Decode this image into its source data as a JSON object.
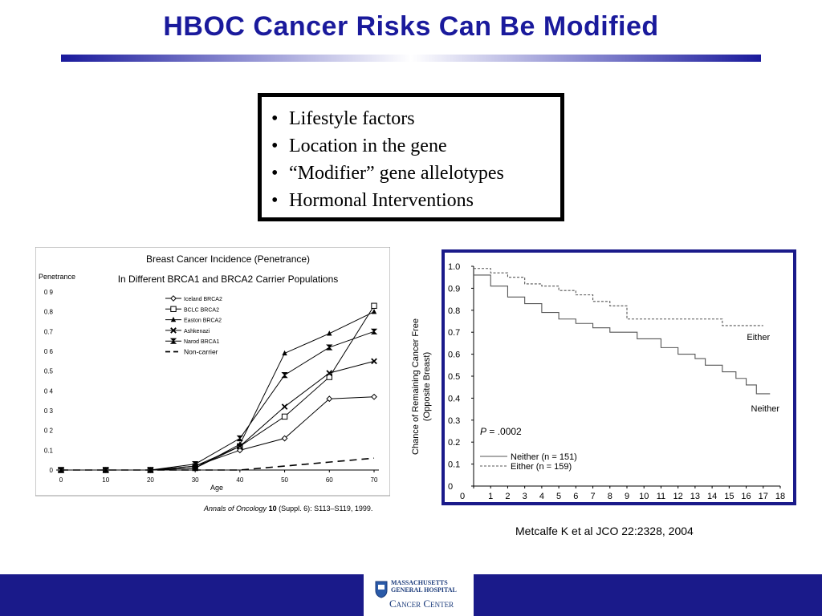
{
  "slide": {
    "title": "HBOC Cancer Risks Can Be Modified",
    "bullets": [
      "Lifestyle factors",
      "Location in the gene",
      "“Modifier” gene allelotypes",
      "Hormonal Interventions"
    ],
    "bullet_glyph": "•",
    "citation": "Metcalfe K et al JCO 22:2328, 2004",
    "colors": {
      "title": "#1a1a9c",
      "footer": "#1a1a8a"
    }
  },
  "logo": {
    "line1": "MASSACHUSETTS",
    "line2": "GENERAL HOSPITAL",
    "line3": "Cancer Center",
    "icon": "mgh-shield-icon"
  },
  "chart_data": [
    {
      "type": "line",
      "title": "Breast Cancer Incidence (Penetrance)",
      "subtitle": "In Different BRCA1 and BRCA2 Carrier Populations",
      "ylabel": "Penetrance",
      "xlabel": "Age",
      "source": "Annals of Oncology 10 (Suppl. 6): S113–S119, 1999.",
      "source_journal": "Annals of Oncology",
      "source_volume": "10",
      "source_suppl": "(Suppl. 6): S113–S119, 1999.",
      "x": [
        0,
        10,
        20,
        30,
        40,
        50,
        60,
        70
      ],
      "xticks": [
        "0",
        "10",
        "20",
        "30",
        "40",
        "50",
        "60",
        "70"
      ],
      "yticks": [
        "0",
        "0.1",
        "0 2",
        "0 3",
        "0 4",
        "0.5",
        "0 6",
        "0.7",
        "0.8",
        "0 9"
      ],
      "ylim": [
        0,
        0.9
      ],
      "xlim": [
        0,
        70
      ],
      "legend_position": "top-center",
      "series": [
        {
          "name": "Iceland BRCA2",
          "marker": "diamond",
          "values": [
            0,
            0,
            0,
            0.02,
            0.1,
            0.16,
            0.36,
            0.37
          ]
        },
        {
          "name": "BCLC BRCA2",
          "marker": "square",
          "values": [
            0,
            0,
            0,
            0.01,
            0.12,
            0.27,
            0.47,
            0.83
          ]
        },
        {
          "name": "Easton BRCA2",
          "marker": "triangle",
          "values": [
            0,
            0,
            0,
            0.01,
            0.13,
            0.59,
            0.69,
            0.8
          ]
        },
        {
          "name": "Ashkenazi",
          "marker": "x",
          "values": [
            0,
            0,
            0,
            0.02,
            0.12,
            0.32,
            0.49,
            0.55
          ]
        },
        {
          "name": "Narod BRCA1",
          "marker": "hourglass",
          "values": [
            0,
            0,
            0,
            0.03,
            0.16,
            0.48,
            0.62,
            0.7
          ]
        },
        {
          "name": "Non-carrier",
          "marker": "none",
          "dashed": true,
          "values": [
            0,
            0,
            0,
            0,
            0,
            0.02,
            0.04,
            0.06
          ]
        }
      ]
    },
    {
      "type": "line",
      "ylabel": "Chance of Remaining Cancer Free\n(Opposite Breast)",
      "ylabel_line1": "Chance of Remaining Cancer Free",
      "ylabel_line2": "(Opposite Breast)",
      "xticks": [
        "0",
        "1",
        "2",
        "3",
        "4",
        "5",
        "6",
        "7",
        "8",
        "9",
        "10",
        "11",
        "12",
        "13",
        "14",
        "15",
        "16",
        "17",
        "18"
      ],
      "yticks": [
        "1.0",
        "0.9",
        "0.8",
        "0.7",
        "0.6",
        "0.5",
        "0.4",
        "0.3",
        "0.2",
        "0.1",
        "0"
      ],
      "xlim": [
        0,
        18
      ],
      "ylim": [
        0,
        1.0
      ],
      "annotation": "P = .0002",
      "annotation_p": "P",
      "annotation_rest": " = .0002",
      "legend_position": "bottom-left",
      "series": [
        {
          "name": "Neither (n = 151)",
          "label": "Neither",
          "style": "solid",
          "steps": [
            [
              0,
              0.96
            ],
            [
              1,
              0.91
            ],
            [
              2,
              0.86
            ],
            [
              3,
              0.83
            ],
            [
              4,
              0.79
            ],
            [
              5,
              0.76
            ],
            [
              6,
              0.74
            ],
            [
              7,
              0.72
            ],
            [
              8,
              0.7
            ],
            [
              9.6,
              0.67
            ],
            [
              11,
              0.63
            ],
            [
              12,
              0.6
            ],
            [
              13,
              0.58
            ],
            [
              13.6,
              0.55
            ],
            [
              14.6,
              0.52
            ],
            [
              15.4,
              0.49
            ],
            [
              16,
              0.46
            ],
            [
              16.6,
              0.42
            ],
            [
              17.4,
              0.42
            ]
          ]
        },
        {
          "name": "Either (n = 159)",
          "label": "Either",
          "style": "dashed",
          "steps": [
            [
              0,
              0.99
            ],
            [
              1,
              0.97
            ],
            [
              2,
              0.95
            ],
            [
              3,
              0.92
            ],
            [
              4,
              0.91
            ],
            [
              5,
              0.89
            ],
            [
              6,
              0.87
            ],
            [
              7,
              0.84
            ],
            [
              8,
              0.82
            ],
            [
              9,
              0.76
            ],
            [
              11,
              0.76
            ],
            [
              14.6,
              0.73
            ],
            [
              17,
              0.73
            ]
          ]
        }
      ]
    }
  ]
}
